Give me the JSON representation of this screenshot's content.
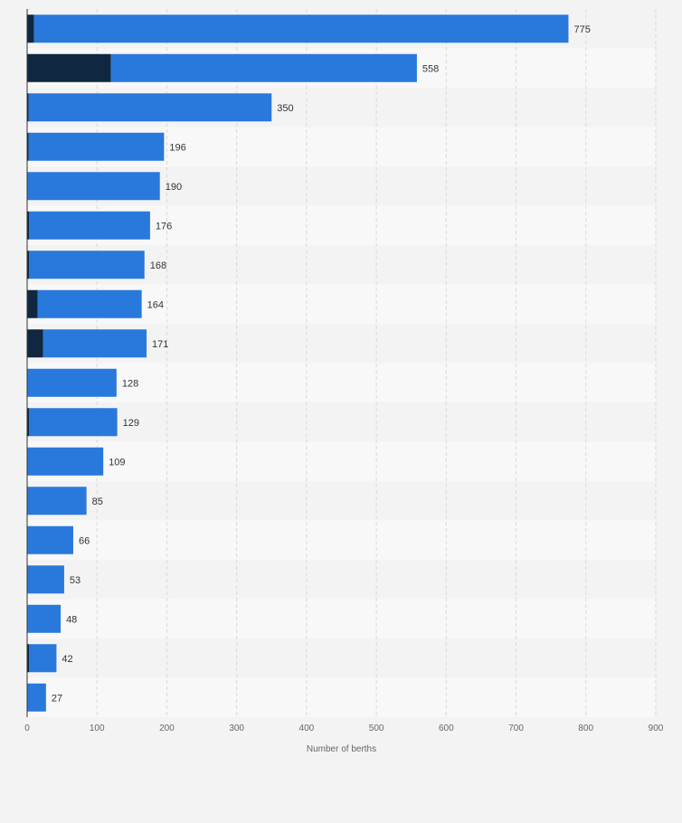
{
  "chart_data": {
    "type": "bar",
    "orientation": "horizontal",
    "stacked": true,
    "title": "",
    "xlabel": "Number of berths",
    "ylabel": "",
    "xlim": [
      0,
      900
    ],
    "xticks": [
      0,
      100,
      200,
      300,
      400,
      500,
      600,
      700,
      800,
      900
    ],
    "grid": true,
    "legend": "none",
    "categories": [
      "",
      "",
      "",
      "",
      "",
      "",
      "",
      "",
      "",
      "",
      "",
      "",
      "",
      "",
      "",
      "",
      "",
      ""
    ],
    "series": [
      {
        "color": "#0f2740",
        "values": [
          10,
          120,
          2,
          2,
          0,
          3,
          3,
          15,
          23,
          0,
          3,
          0,
          0,
          1,
          0,
          1,
          3,
          0
        ]
      },
      {
        "color": "#2979dc",
        "values": [
          765,
          438,
          348,
          194,
          190,
          173,
          165,
          149,
          148,
          128,
          126,
          109,
          85,
          65,
          53,
          47,
          39,
          27
        ]
      }
    ],
    "totals": [
      "775",
      "558",
      "350",
      "196",
      "190",
      "176",
      "168",
      "164",
      "171",
      "128",
      "129",
      "109",
      "85",
      "66",
      "53",
      "48",
      "42",
      "27"
    ]
  }
}
